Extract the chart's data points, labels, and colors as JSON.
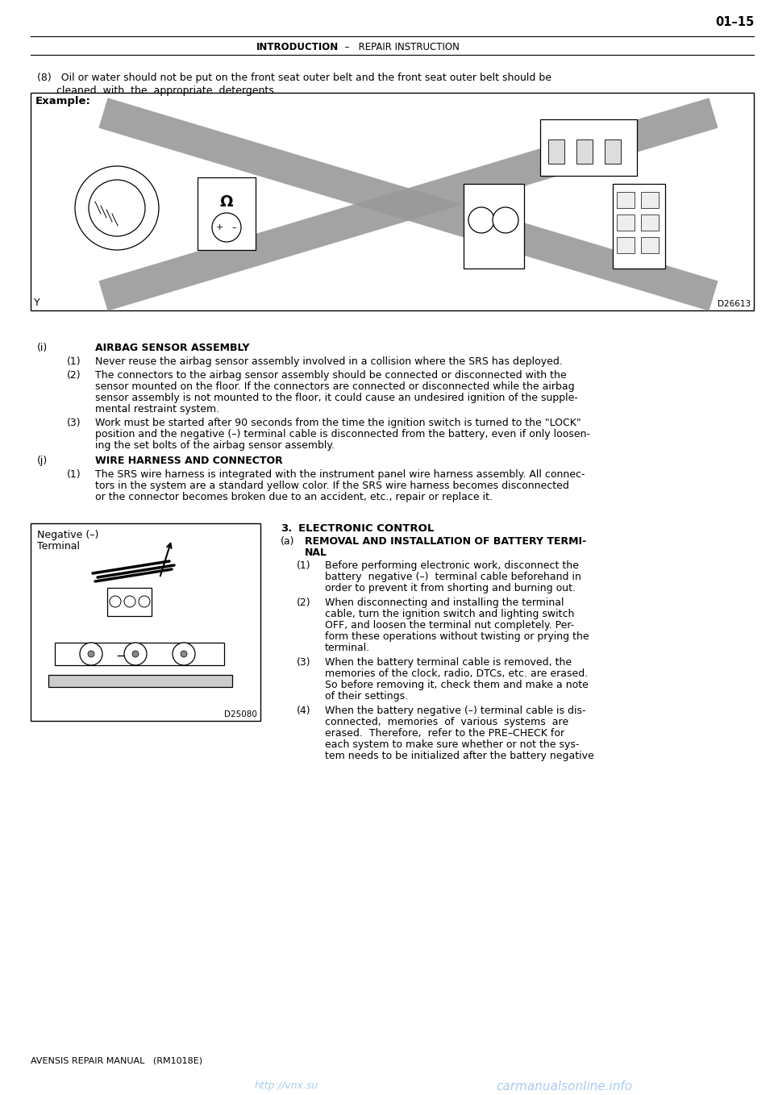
{
  "page_number": "01–15",
  "header_left_bold": "INTRODUCTION",
  "header_center": "  –   REPAIR INSTRUCTION",
  "footer_left": "AVENSIS REPAIR MANUAL   (RM1018E)",
  "footer_url1": "http://vnx.su",
  "footer_url2": "carmanualsonline.info",
  "bg_color": "#ffffff",
  "text_color": "#000000",
  "gray_cross_color": "#999999",
  "example_label": "Example:",
  "diagram1_code": "D26613",
  "diagram1_y_label": "Y",
  "section8_line1": "(8)   Oil or water should not be put on the front seat outer belt and the front seat outer belt should be",
  "section8_line2": "      cleaned  with  the  appropriate  detergents.",
  "sec_i_title": "(i)   AIRBAG SENSOR ASSEMBLY",
  "sec_i1_label": "(1)",
  "sec_i1": "Never reuse the airbag sensor assembly involved in a collision where the SRS has deployed.",
  "sec_i2_label": "(2)",
  "sec_i2_l1": "The connectors to the airbag sensor assembly should be connected or disconnected with the",
  "sec_i2_l2": "sensor mounted on the floor. If the connectors are connected or disconnected while the airbag",
  "sec_i2_l3": "sensor assembly is not mounted to the floor, it could cause an undesired ignition of the supple-",
  "sec_i2_l4": "mental restraint system.",
  "sec_i3_label": "(3)",
  "sec_i3_l1": "Work must be started after 90 seconds from the time the ignition switch is turned to the \"LOCK\"",
  "sec_i3_l2": "position and the negative (–) terminal cable is disconnected from the battery, even if only loosen-",
  "sec_i3_l3": "ing the set bolts of the airbag sensor assembly.",
  "sec_j_title": "(j)   WIRE HARNESS AND CONNECTOR",
  "sec_j1_label": "(1)",
  "sec_j1_l1": "The SRS wire harness is integrated with the instrument panel wire harness assembly. All connec-",
  "sec_j1_l2": "tors in the system are a standard yellow color. If the SRS wire harness becomes disconnected",
  "sec_j1_l3": "or the connector becomes broken due to an accident, etc., repair or replace it.",
  "sec3_num": "3.",
  "sec3_title": "ELECTRONIC CONTROL",
  "sec3a_label": "(a)",
  "sec3a_l1": "REMOVAL AND INSTALLATION OF BATTERY TERMI-",
  "sec3a_l2": "NAL",
  "sec3a1_label": "(1)",
  "sec3a1_l1": "Before performing electronic work, disconnect the",
  "sec3a1_l2": "battery  negative (–)  terminal cable beforehand in",
  "sec3a1_l3": "order to prevent it from shorting and burning out.",
  "sec3a2_label": "(2)",
  "sec3a2_l1": "When disconnecting and installing the terminal",
  "sec3a2_l2": "cable, turn the ignition switch and lighting switch",
  "sec3a2_l3": "OFF, and loosen the terminal nut completely. Per-",
  "sec3a2_l4": "form these operations without twisting or prying the",
  "sec3a2_l5": "terminal.",
  "sec3a3_label": "(3)",
  "sec3a3_l1": "When the battery terminal cable is removed, the",
  "sec3a3_l2": "memories of the clock, radio, DTCs, etc. are erased.",
  "sec3a3_l3": "So before removing it, check them and make a note",
  "sec3a3_l4": "of their settings.",
  "sec3a4_label": "(4)",
  "sec3a4_l1": "When the battery negative (–) terminal cable is dis-",
  "sec3a4_l2": "connected,  memories  of  various  systems  are",
  "sec3a4_l3": "erased.  Therefore,  refer to the PRE–CHECK for",
  "sec3a4_l4": "each system to make sure whether or not the sys-",
  "sec3a4_l5": "tem needs to be initialized after the battery negative",
  "diag2_label1": "Negative (–)",
  "diag2_label2": "Terminal",
  "diag2_code": "D25080"
}
